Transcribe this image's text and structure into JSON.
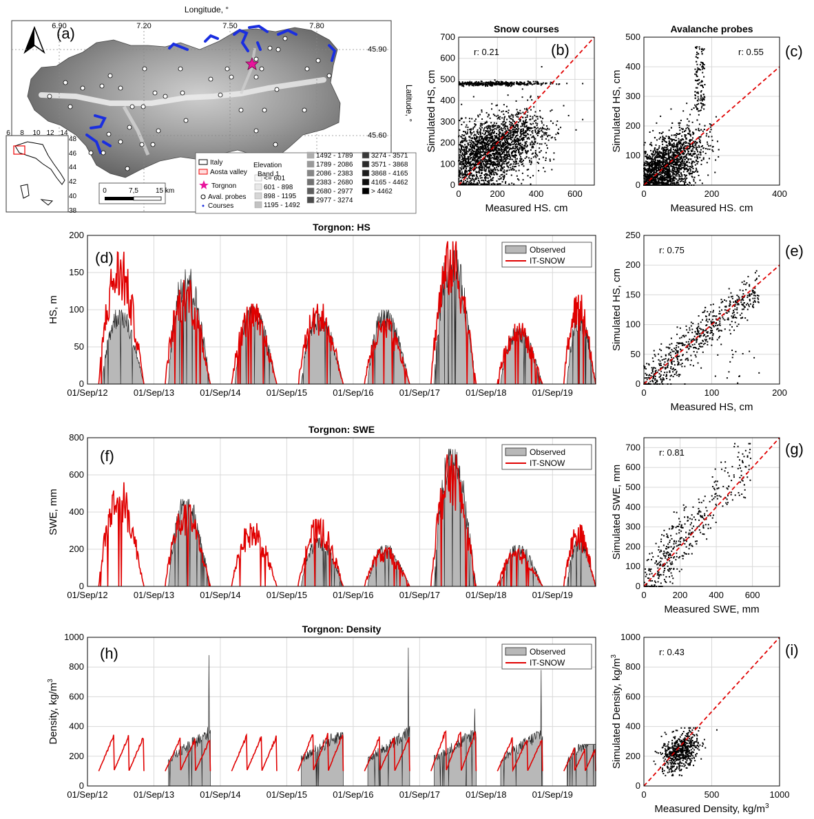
{
  "colors": {
    "observed_fill": "#b8b8b8",
    "model_line": "#e00000",
    "diagonal": "#e00000",
    "grid": "#d8d8d8",
    "courses_blue": "#1a2ee0",
    "torgnon_star": "#e8149c"
  },
  "map": {
    "panel_label": "(a)",
    "longitude_title": "Longitude, °",
    "latitude_title": "Latitude, °",
    "lon_ticks": [
      "6.90",
      "7.20",
      "7.50",
      "7.80"
    ],
    "lat_ticks": [
      "45.90",
      "45.60"
    ],
    "inset_x_ticks": [
      "6",
      "8",
      "10",
      "12",
      "14"
    ],
    "inset_y_ticks": [
      "48",
      "46",
      "44",
      "42",
      "40",
      "38"
    ],
    "scalebar": [
      "0",
      "7,5",
      "15 km"
    ],
    "legend": {
      "italy": "Italy",
      "aosta": "Aosta valley",
      "torgnon": "Torgnon",
      "probes": "Aval. probes",
      "courses": "Courses",
      "elev_title": "Elevation",
      "band": "Band 1",
      "classes": [
        "<= 601",
        "601 - 898",
        "898 - 1195",
        "1195 - 1492",
        "1492 - 1789",
        "1789 - 2086",
        "2086 - 2383",
        "2383 - 2680",
        "2680 - 2977",
        "2977 - 3274",
        "3274 - 3571",
        "3571 - 3868",
        "3868 - 4165",
        "4165 - 4462",
        "> 4462"
      ],
      "class_colors": [
        "#f8f8f8",
        "#e8e8e8",
        "#d6d6d6",
        "#c2c2c2",
        "#aeaeae",
        "#9a9a9a",
        "#868686",
        "#727272",
        "#5e5e5e",
        "#4c4c4c",
        "#3a3a3a",
        "#2a2a2a",
        "#1c1c1c",
        "#0e0e0e",
        "#000000"
      ]
    }
  },
  "chart_data": [
    {
      "id": "b",
      "type": "scatter",
      "panel_label": "(b)",
      "title": "Snow courses",
      "xlabel": "Measured HS. cm",
      "ylabel": "Simulated HS, cm",
      "xlim": [
        0,
        700
      ],
      "ylim": [
        0,
        700
      ],
      "xticks": [
        0,
        200,
        400,
        600
      ],
      "yticks": [
        0,
        100,
        200,
        300,
        400,
        500,
        600,
        700
      ],
      "r_label": "r: 0.21",
      "r_value": 0.21,
      "diagonal": true
    },
    {
      "id": "c",
      "type": "scatter",
      "panel_label": "(c)",
      "title": "Avalanche probes",
      "xlabel": "Measured HS. cm",
      "ylabel": "Simulated HS, cm",
      "xlim": [
        0,
        400
      ],
      "ylim": [
        0,
        500
      ],
      "xticks": [
        0,
        200,
        400
      ],
      "yticks": [
        0,
        100,
        200,
        300,
        400,
        500
      ],
      "r_label": "r: 0.55",
      "r_value": 0.55,
      "diagonal": true
    },
    {
      "id": "d",
      "type": "area",
      "panel_label": "(d)",
      "title": "Torgnon: HS",
      "ylabel": "HS, m",
      "ylim": [
        0,
        200
      ],
      "yticks": [
        0,
        50,
        100,
        150,
        200
      ],
      "legend": [
        "Observed",
        "IT-SNOW"
      ],
      "xticklabels": [
        "01/Sep/12",
        "01/Sep/13",
        "01/Sep/14",
        "01/Sep/15",
        "01/Sep/16",
        "01/Sep/17",
        "01/Sep/18",
        "01/Sep/19"
      ],
      "observed_peaks": [
        {
          "season": "2012/13",
          "peak": 100
        },
        {
          "season": "2013/14",
          "peak": 155
        },
        {
          "season": "2014/15",
          "peak": 105
        },
        {
          "season": "2015/16",
          "peak": 95
        },
        {
          "season": "2016/17",
          "peak": 100
        },
        {
          "season": "2017/18",
          "peak": 180
        },
        {
          "season": "2018/19",
          "peak": 75
        },
        {
          "season": "2019/20",
          "peak": 95
        }
      ],
      "model_peaks": [
        {
          "season": "2012/13",
          "peak": 178
        },
        {
          "season": "2013/14",
          "peak": 140
        },
        {
          "season": "2014/15",
          "peak": 108
        },
        {
          "season": "2015/16",
          "peak": 108
        },
        {
          "season": "2016/17",
          "peak": 88
        },
        {
          "season": "2017/18",
          "peak": 192
        },
        {
          "season": "2018/19",
          "peak": 82
        },
        {
          "season": "2019/20",
          "peak": 120
        }
      ]
    },
    {
      "id": "e",
      "type": "scatter",
      "panel_label": "(e)",
      "xlabel": "Measured HS, cm",
      "ylabel": "Simulated HS, cm",
      "xlim": [
        0,
        200
      ],
      "ylim": [
        0,
        250
      ],
      "xticks": [
        0,
        100,
        200
      ],
      "yticks": [
        0,
        50,
        100,
        150,
        200,
        250
      ],
      "r_label": "r: 0.75",
      "r_value": 0.75,
      "diagonal": true
    },
    {
      "id": "f",
      "type": "area",
      "panel_label": "(f)",
      "title": "Torgnon: SWE",
      "ylabel": "SWE, mm",
      "ylim": [
        0,
        800
      ],
      "yticks": [
        0,
        200,
        400,
        600,
        800
      ],
      "legend": [
        "Observed",
        "IT-SNOW"
      ],
      "xticklabels": [
        "01/Sep/12",
        "01/Sep/13",
        "01/Sep/14",
        "01/Sep/15",
        "01/Sep/16",
        "01/Sep/17",
        "01/Sep/18",
        "01/Sep/19"
      ],
      "observed_peaks": [
        {
          "season": "2013/14",
          "peak": 470
        },
        {
          "season": "2015/16",
          "peak": 260
        },
        {
          "season": "2016/17",
          "peak": 220
        },
        {
          "season": "2017/18",
          "peak": 740
        },
        {
          "season": "2018/19",
          "peak": 220
        },
        {
          "season": "2019/20",
          "peak": 250
        }
      ],
      "model_peaks": [
        {
          "season": "2012/13",
          "peak": 560
        },
        {
          "season": "2013/14",
          "peak": 440
        },
        {
          "season": "2014/15",
          "peak": 340
        },
        {
          "season": "2015/16",
          "peak": 360
        },
        {
          "season": "2016/17",
          "peak": 210
        },
        {
          "season": "2017/18",
          "peak": 710
        },
        {
          "season": "2018/19",
          "peak": 200
        },
        {
          "season": "2019/20",
          "peak": 330
        }
      ]
    },
    {
      "id": "g",
      "type": "scatter",
      "panel_label": "(g)",
      "xlabel": "Measured SWE, mm",
      "ylabel": "Simulated SWE, mm",
      "xlim": [
        0,
        750
      ],
      "ylim": [
        0,
        750
      ],
      "xticks": [
        0,
        200,
        400,
        600
      ],
      "yticks": [
        0,
        100,
        200,
        300,
        400,
        500,
        600,
        700
      ],
      "r_label": "r: 0.81",
      "r_value": 0.81,
      "diagonal": true
    },
    {
      "id": "h",
      "type": "area",
      "panel_label": "(h)",
      "title": "Torgnon: Density",
      "ylabel": "Density, kg/m",
      "ylabel_sup": "3",
      "ylim": [
        0,
        1000
      ],
      "yticks": [
        0,
        200,
        400,
        600,
        800,
        1000
      ],
      "legend": [
        "Observed",
        "IT-SNOW"
      ],
      "xticklabels": [
        "01/Sep/12",
        "01/Sep/13",
        "01/Sep/14",
        "01/Sep/15",
        "01/Sep/16",
        "01/Sep/17",
        "01/Sep/18",
        "01/Sep/19"
      ],
      "observed_peaks": [
        {
          "season": "2013/14",
          "peak": 880
        },
        {
          "season": "2015/16",
          "peak": 360
        },
        {
          "season": "2016/17",
          "peak": 930
        },
        {
          "season": "2017/18",
          "peak": 520
        },
        {
          "season": "2018/19",
          "peak": 780
        },
        {
          "season": "2019/20",
          "peak": 280
        }
      ],
      "model_peaks": [
        {
          "season": "2012/13",
          "peak": 350
        },
        {
          "season": "2013/14",
          "peak": 330
        },
        {
          "season": "2014/15",
          "peak": 350
        },
        {
          "season": "2015/16",
          "peak": 370
        },
        {
          "season": "2016/17",
          "peak": 340
        },
        {
          "season": "2017/18",
          "peak": 390
        },
        {
          "season": "2018/19",
          "peak": 330
        },
        {
          "season": "2019/20",
          "peak": 260
        }
      ]
    },
    {
      "id": "i",
      "type": "scatter",
      "panel_label": "(i)",
      "xlabel": "Measured Density, kg/m",
      "xlabel_sup": "3",
      "ylabel": "Simulated Density, kg/m",
      "ylabel_sup": "3",
      "xlim": [
        0,
        1000
      ],
      "ylim": [
        0,
        1000
      ],
      "xticks": [
        0,
        500,
        1000
      ],
      "yticks": [
        0,
        200,
        400,
        600,
        800,
        1000
      ],
      "r_label": "r: 0.43",
      "r_value": 0.43,
      "diagonal": true
    }
  ]
}
